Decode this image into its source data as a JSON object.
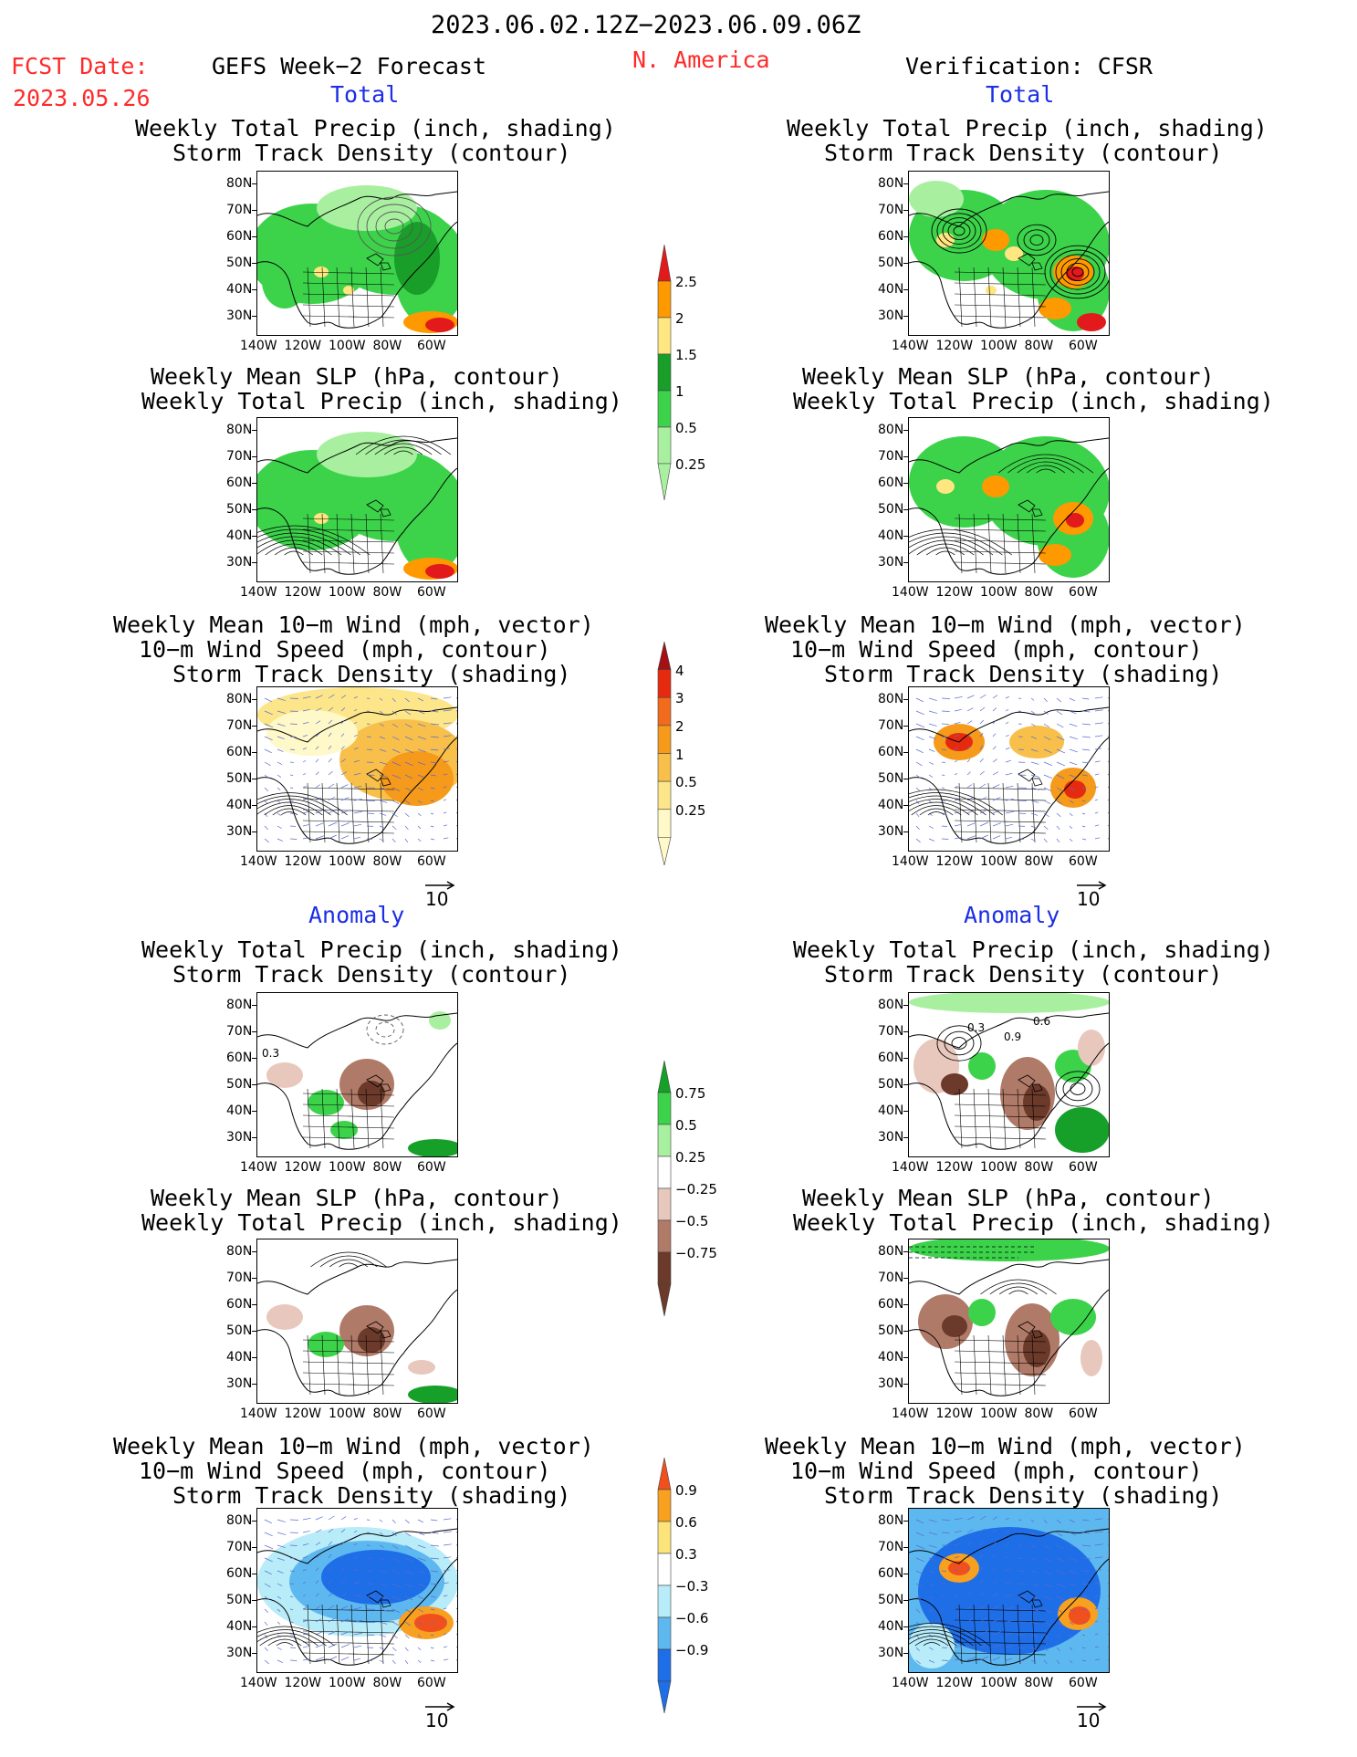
{
  "header": {
    "period": "2023.06.02.12Z−2023.06.09.06Z",
    "fcst_label": "FCST Date:",
    "fcst_date": "2023.05.26",
    "region": "N. America",
    "left_title": "GEFS Week−2 Forecast",
    "right_title": "Verification: CFSR"
  },
  "sections": {
    "total": "Total",
    "anomaly": "Anomaly"
  },
  "panel_titles": {
    "precip_storm": [
      "Weekly Total Precip (inch, shading)",
      "Storm Track Density (contour)"
    ],
    "slp_precip": [
      "Weekly Mean SLP (hPa, contour)",
      "Weekly Total Precip (inch, shading)"
    ],
    "wind_storm": [
      "Weekly Mean 10−m Wind (mph, vector)",
      "10−m Wind Speed (mph, contour)",
      "Storm Track Density (shading)"
    ]
  },
  "axes": {
    "lat_labels": [
      "80N",
      "70N",
      "60N",
      "50N",
      "40N",
      "30N"
    ],
    "lon_labels": [
      "140W",
      "120W",
      "100W",
      "80W",
      "60W"
    ]
  },
  "vector_reference": "10",
  "map_annotations": {
    "anom_precip_fcst": [
      "0.3"
    ],
    "anom_precip_verif": [
      "0.3",
      "0.6",
      "0.9"
    ]
  },
  "colorbars": {
    "precip_total": {
      "labels": [
        "2.5",
        "2",
        "1.5",
        "1",
        "0.5",
        "0.25"
      ],
      "colors": [
        "#e31a1c",
        "#ff9900",
        "#ffe680",
        "#1a9e2a",
        "#3cd34b",
        "#a8f0a0"
      ]
    },
    "storm_total": {
      "labels": [
        "4",
        "3",
        "2",
        "1",
        "0.5",
        "0.25"
      ],
      "colors": [
        "#a50f15",
        "#e62a10",
        "#f26b1d",
        "#f59a1a",
        "#f8c04a",
        "#fde68a",
        "#fff8c8"
      ]
    },
    "precip_anom": {
      "labels": [
        "0.75",
        "0.5",
        "0.25",
        "−0.25",
        "−0.5",
        "−0.75"
      ],
      "colors": [
        "#16a02a",
        "#3cd34b",
        "#a8f0a0",
        "#ffffff",
        "#e8c8bc",
        "#b07a68",
        "#6b3a2a"
      ]
    },
    "storm_anom": {
      "labels": [
        "0.9",
        "0.6",
        "0.3",
        "−0.3",
        "−0.6",
        "−0.9"
      ],
      "colors": [
        "#f0501e",
        "#f8a020",
        "#fde47a",
        "#ffffff",
        "#b8ecf8",
        "#5eb8f0",
        "#1e6ee8"
      ]
    }
  }
}
